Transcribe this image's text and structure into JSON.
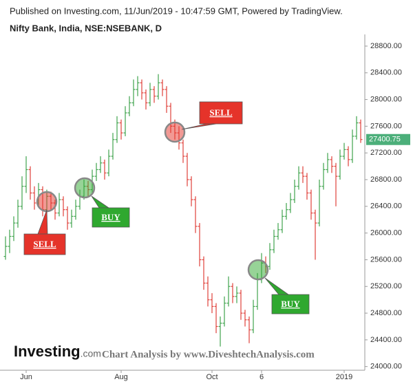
{
  "chart_data": {
    "type": "ohlc",
    "published": "Published on Investing.com, 11/Jun/2019 - 10:47:59 GMT, Powered by TradingView.",
    "title": "Nifty Bank, India, NSE:NSEBANK, D",
    "categories": [
      null,
      null,
      null,
      null,
      null,
      "Jun",
      null,
      null,
      null,
      null,
      null,
      null,
      null,
      null,
      null,
      null,
      null,
      null,
      null,
      null,
      null,
      null,
      null,
      null,
      null,
      null,
      null,
      null,
      "Aug",
      null,
      null,
      null,
      null,
      null,
      null,
      null,
      null,
      null,
      null,
      null,
      null,
      null,
      null,
      null,
      null,
      null,
      null,
      null,
      null,
      null,
      "Oct",
      null,
      null,
      null,
      null,
      null,
      null,
      null,
      null,
      null,
      null,
      null,
      "6",
      null,
      null,
      null,
      null,
      null,
      null,
      null,
      null,
      null,
      null,
      null,
      null,
      null,
      null,
      null,
      null,
      null,
      null,
      null,
      "2019",
      null,
      null,
      null,
      null
    ],
    "open": [
      25650,
      25800,
      25950,
      26150,
      26400,
      26700,
      26950,
      26600,
      26450,
      26650,
      26350,
      26550,
      26450,
      26300,
      26500,
      26350,
      26150,
      26250,
      26400,
      26550,
      26700,
      26650,
      26850,
      26950,
      27050,
      26900,
      27150,
      27400,
      27650,
      27500,
      27800,
      27950,
      28150,
      28250,
      28100,
      27950,
      28150,
      28050,
      28250,
      28150,
      27900,
      27600,
      27500,
      27350,
      27150,
      26800,
      26500,
      26100,
      25600,
      25250,
      25000,
      24900,
      24600,
      24650,
      24950,
      25200,
      25050,
      25100,
      24800,
      24700,
      24550,
      24900,
      25300,
      25550,
      25500,
      25750,
      25950,
      26050,
      26250,
      26350,
      26500,
      26700,
      26900,
      26850,
      26600,
      26300,
      26150,
      26700,
      26950,
      27100,
      27000,
      26850,
      27150,
      27250,
      27100,
      27450,
      27650
    ],
    "high": [
      25950,
      26050,
      26250,
      26500,
      26850,
      27150,
      27000,
      26700,
      26750,
      26700,
      26650,
      26620,
      26500,
      26600,
      26550,
      26400,
      26350,
      26500,
      26650,
      26800,
      26780,
      26950,
      27050,
      27150,
      27100,
      27250,
      27500,
      27750,
      27700,
      27900,
      28050,
      28300,
      28350,
      28300,
      28150,
      28250,
      28200,
      28380,
      28300,
      28200,
      27950,
      27700,
      27600,
      27400,
      27200,
      26850,
      26550,
      26150,
      25650,
      25350,
      25100,
      24950,
      24750,
      25050,
      25350,
      25250,
      25200,
      25150,
      24850,
      24750,
      25000,
      25400,
      25700,
      25650,
      25850,
      26050,
      26150,
      26350,
      26450,
      26600,
      26800,
      27000,
      27000,
      26900,
      26650,
      26350,
      26800,
      27050,
      27200,
      27150,
      27050,
      27250,
      27350,
      27300,
      27550,
      27750,
      27700
    ],
    "low": [
      25600,
      25700,
      25880,
      26080,
      26350,
      26600,
      26500,
      26350,
      26400,
      26250,
      26300,
      26350,
      26200,
      26250,
      26250,
      26050,
      26080,
      26200,
      26350,
      26500,
      26550,
      26600,
      26780,
      26900,
      26800,
      26850,
      27100,
      27350,
      27400,
      27450,
      27750,
      27900,
      28050,
      28000,
      27850,
      27900,
      27950,
      28000,
      28050,
      27800,
      27500,
      27400,
      27250,
      27050,
      26700,
      26400,
      26000,
      25500,
      25150,
      24900,
      24800,
      24500,
      24300,
      24600,
      24900,
      24950,
      24950,
      24700,
      24600,
      24350,
      24500,
      24850,
      25250,
      25400,
      25450,
      25700,
      25900,
      26000,
      26200,
      26300,
      26450,
      26650,
      26750,
      26500,
      26200,
      25600,
      26100,
      26650,
      26900,
      26900,
      26400,
      26800,
      27100,
      27000,
      27050,
      27400,
      27350
    ],
    "close": [
      25800,
      25950,
      26150,
      26400,
      26700,
      26950,
      26600,
      26450,
      26650,
      26350,
      26550,
      26450,
      26300,
      26500,
      26350,
      26150,
      26250,
      26400,
      26550,
      26700,
      26650,
      26850,
      26950,
      27050,
      26900,
      27150,
      27400,
      27650,
      27500,
      27800,
      27950,
      28150,
      28250,
      28100,
      27950,
      28150,
      28050,
      28250,
      28150,
      27900,
      27600,
      27500,
      27350,
      27150,
      26800,
      26500,
      26100,
      25600,
      25250,
      25000,
      24900,
      24600,
      24650,
      24950,
      25200,
      25050,
      25100,
      24800,
      24700,
      24550,
      24900,
      25300,
      25550,
      25500,
      25750,
      25950,
      26050,
      26250,
      26350,
      26500,
      26700,
      26900,
      26850,
      26600,
      26300,
      26150,
      26700,
      26950,
      27100,
      27000,
      26850,
      27150,
      27250,
      27100,
      27450,
      27650,
      27400.75
    ],
    "up_color": "#3fa34d",
    "down_color": "#e0403a",
    "last_tag_color": "#4caf7a",
    "ylim": [
      23945,
      28975
    ],
    "yticks": [
      {
        "value": 24000,
        "label": "24000.00"
      },
      {
        "value": 24400,
        "label": "24400.00"
      },
      {
        "value": 24800,
        "label": "24800.00"
      },
      {
        "value": 25200,
        "label": "25200.00"
      },
      {
        "value": 25600,
        "label": "25600.00"
      },
      {
        "value": 26000,
        "label": "26000.00"
      },
      {
        "value": 26400,
        "label": "26400.00"
      },
      {
        "value": 26800,
        "label": "26800.00"
      },
      {
        "value": 27200,
        "label": "27200.00"
      },
      {
        "value": 27600,
        "label": "27600.00"
      },
      {
        "value": 28000,
        "label": "28000.00"
      },
      {
        "value": 28400,
        "label": "28400.00"
      },
      {
        "value": 28800,
        "label": "28800.00"
      }
    ],
    "annotations": [
      {
        "text": "SELL",
        "color": "#e5332a"
      },
      {
        "text": "BUY",
        "color": "#2fa82f"
      },
      {
        "text": "SELL",
        "color": "#e5332a"
      },
      {
        "text": "BUY",
        "color": "#2fa82f"
      }
    ],
    "logo": "Investing",
    "logo_suffix": ".com",
    "watermark": "Chart Analysis by www.DiveshtechAnalysis.com"
  }
}
